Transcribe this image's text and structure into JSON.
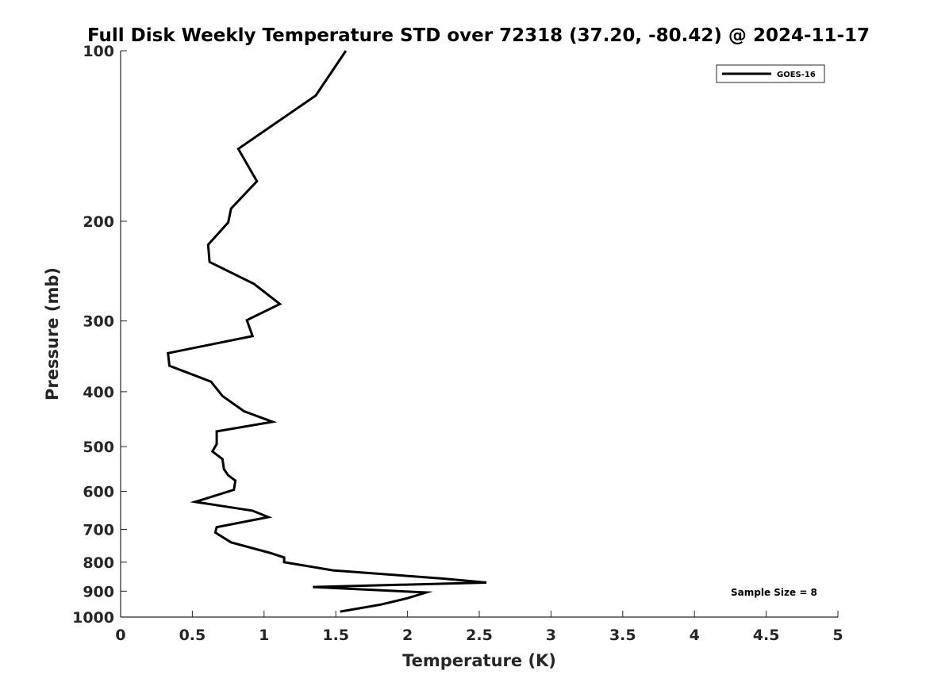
{
  "chart_data": {
    "type": "line",
    "title": "Full Disk Weekly Temperature STD over 72318 (37.20, -80.42) @ 2024-11-17",
    "xlabel": "Temperature (K)",
    "ylabel": "Pressure (mb)",
    "xlim": [
      0,
      5
    ],
    "ylim": [
      1000,
      100
    ],
    "yscale": "log",
    "y_reversed": true,
    "grid": false,
    "legend_position": "top-right",
    "x_ticks": [
      "0",
      "0.5",
      "1",
      "1.5",
      "2",
      "2.5",
      "3",
      "3.5",
      "4",
      "4.5",
      "5"
    ],
    "y_ticks": [
      "100",
      "200",
      "300",
      "400",
      "500",
      "600",
      "700",
      "800",
      "900",
      "1000"
    ],
    "series": [
      {
        "name": "GOES-16",
        "color": "#000000",
        "x": [
          1.57,
          1.36,
          0.82,
          0.95,
          0.77,
          0.75,
          0.61,
          0.62,
          0.93,
          1.11,
          0.88,
          0.92,
          0.33,
          0.34,
          0.63,
          0.71,
          0.86,
          1.06,
          0.67,
          0.67,
          0.64,
          0.71,
          0.72,
          0.75,
          0.8,
          0.79,
          0.52,
          0.92,
          1.03,
          0.67,
          0.66,
          0.77,
          1.04,
          1.14,
          1.14,
          1.48,
          2.24,
          2.55,
          1.34,
          2.13,
          2.0,
          1.81,
          1.53
        ],
        "y": [
          100,
          120,
          149,
          170,
          190,
          201,
          220,
          236,
          258,
          280,
          299,
          319,
          342,
          360,
          384,
          407,
          433,
          452,
          470,
          495,
          510,
          526,
          548,
          562,
          574,
          596,
          626,
          649,
          666,
          694,
          709,
          738,
          770,
          785,
          800,
          827,
          855,
          869,
          885,
          905,
          926,
          951,
          978
        ]
      }
    ],
    "annotations": [
      {
        "text": "Sample Size = 8",
        "position": "bottom-right"
      }
    ]
  }
}
